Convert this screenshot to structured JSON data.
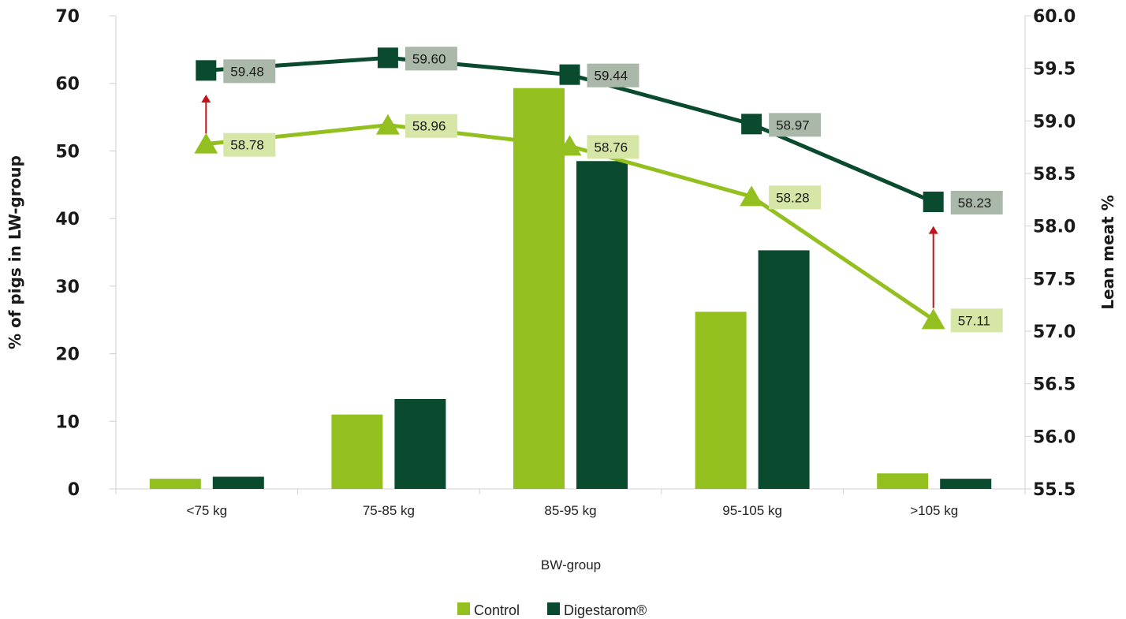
{
  "chart_data": {
    "type": "bar",
    "title": "",
    "xlabel": "BW-group",
    "ylabel": "% of pigs in LW-group",
    "y2label": "Lean meat %",
    "ylim": [
      0,
      70
    ],
    "y2lim": [
      55.5,
      60.0
    ],
    "yticks": [
      "0",
      "10",
      "20",
      "30",
      "40",
      "50",
      "60",
      "70"
    ],
    "y2ticks": [
      "55.5",
      "56.0",
      "56.5",
      "57.0",
      "57.5",
      "58.0",
      "58.5",
      "59.0",
      "59.5",
      "60.0"
    ],
    "categories": [
      "<75 kg",
      "75-85 kg",
      "85-95 kg",
      "95-105 kg",
      ">105 kg"
    ],
    "series": [
      {
        "name": "Control",
        "type": "bar",
        "axis": "left",
        "color": "#93c01f",
        "values": [
          1.5,
          11,
          59.3,
          26.2,
          2.3
        ]
      },
      {
        "name": "Digestarom®",
        "type": "bar",
        "axis": "left",
        "color": "#0a4a2e",
        "values": [
          1.8,
          13.3,
          48.5,
          35.3,
          1.5
        ]
      },
      {
        "type": "line",
        "axis": "right",
        "marker": "triangle",
        "color": "#93c01f",
        "label_bg": "#d5e6a6",
        "values": [
          58.78,
          58.96,
          58.76,
          58.28,
          57.11
        ],
        "labels": [
          "58.78",
          "58.96",
          "58.76",
          "58.28",
          "57.11"
        ]
      },
      {
        "type": "line",
        "axis": "right",
        "marker": "square",
        "color": "#0a4a2e",
        "label_bg": "#a9b8a8",
        "values": [
          59.48,
          59.6,
          59.44,
          58.97,
          58.23
        ],
        "labels": [
          "59.48",
          "59.60",
          "59.44",
          "58.97",
          "58.23"
        ]
      }
    ],
    "annotations": [
      {
        "type": "arrow",
        "category": "<75 kg",
        "from": 58.88,
        "to": 59.25,
        "color": "#c0141b"
      },
      {
        "type": "arrow",
        "category": ">105 kg",
        "from": 57.22,
        "to": 58.0,
        "color": "#c0141b"
      }
    ],
    "legend": {
      "position": "bottom",
      "entries": [
        "Control",
        "Digestarom®"
      ]
    },
    "grid": false
  }
}
